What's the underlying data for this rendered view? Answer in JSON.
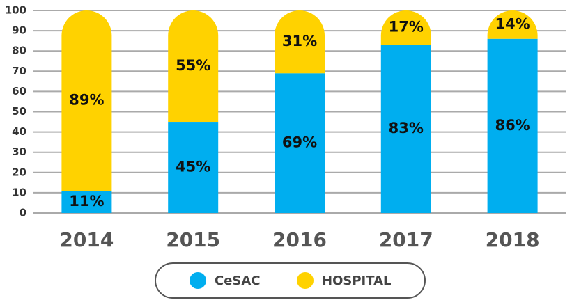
{
  "chart_data": {
    "type": "stacked_bar",
    "categories": [
      "2014",
      "2015",
      "2016",
      "2017",
      "2018"
    ],
    "series": [
      {
        "name": "CeSAC",
        "color": "#00aeef",
        "values": [
          11,
          45,
          69,
          83,
          86
        ],
        "value_labels": [
          "11%",
          "45%",
          "69%",
          "83%",
          "86%"
        ]
      },
      {
        "name": "HOSPITAL",
        "color": "#ffd200",
        "values": [
          89,
          55,
          31,
          17,
          14
        ],
        "value_labels": [
          "89%",
          "55%",
          "31%",
          "17%",
          "14%"
        ]
      }
    ],
    "ylim": [
      0,
      100
    ],
    "yticks": [
      0,
      10,
      20,
      30,
      40,
      50,
      60,
      70,
      80,
      90,
      100
    ],
    "grid": true,
    "legend": "bottom"
  }
}
